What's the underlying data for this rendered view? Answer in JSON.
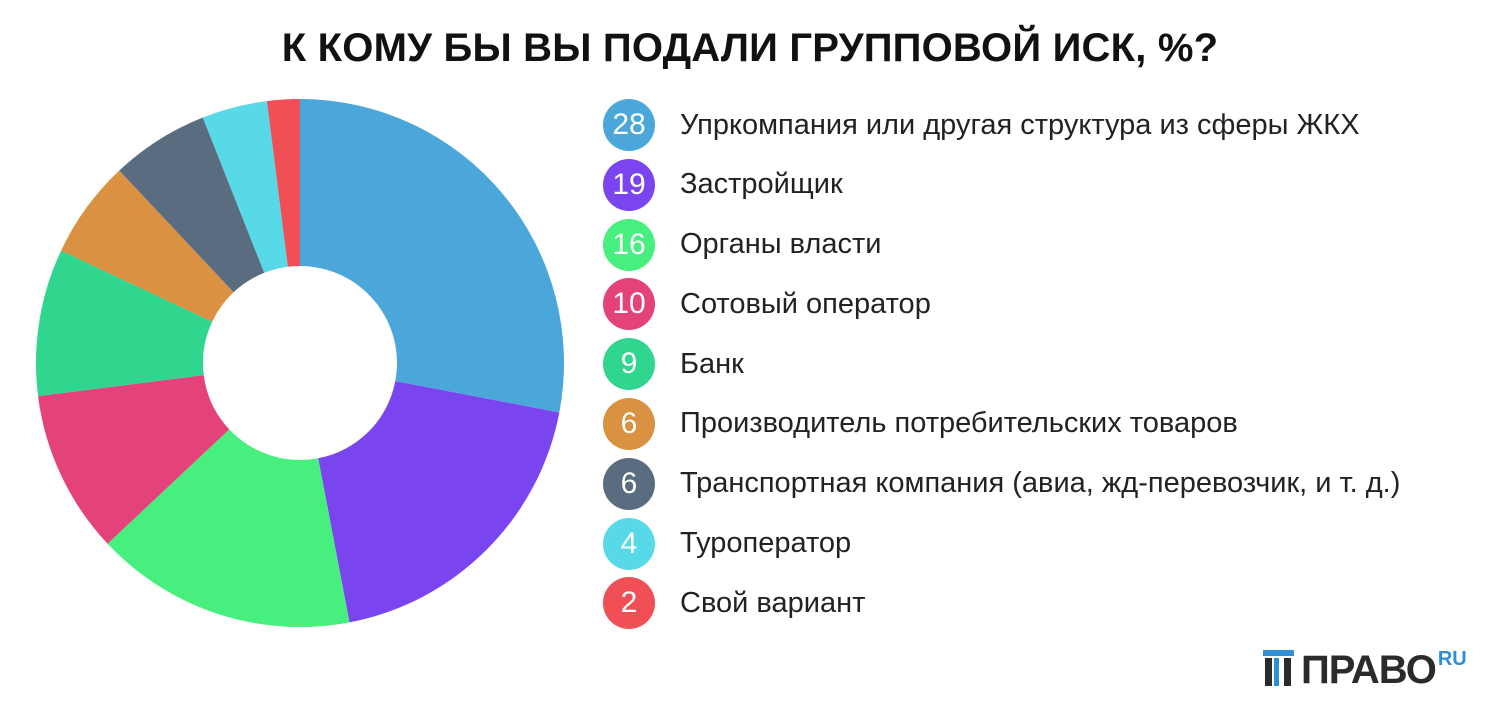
{
  "title": "К КОМУ БЫ ВЫ ПОДАЛИ ГРУППОВОЙ ИСК, %?",
  "chart_data": {
    "type": "pie",
    "donut": true,
    "title": "К КОМУ БЫ ВЫ ПОДАЛИ ГРУППОВОЙ ИСК, %?",
    "categories": [
      "Упркомпания или другая структура из сферы ЖКХ",
      "Застройщик",
      "Органы власти",
      "Сотовый оператор",
      "Банк",
      "Производитель потребительских товаров",
      "Транспортная компания (авиа, жд-перевозчик, и т. д.)",
      "Туроператор",
      "Свой вариант"
    ],
    "values": [
      28,
      19,
      16,
      10,
      9,
      6,
      6,
      4,
      2
    ],
    "colors": [
      "#4ba6d9",
      "#7a45ee",
      "#47ef7e",
      "#e3437a",
      "#30d68e",
      "#db9142",
      "#5a6c80",
      "#58d9e8",
      "#f04f55"
    ],
    "legend_position": "right"
  },
  "logo": {
    "word": "ПРАВО",
    "suffix": "RU",
    "word_color": "#2b2b2b",
    "accent_color": "#2e8fd6"
  }
}
